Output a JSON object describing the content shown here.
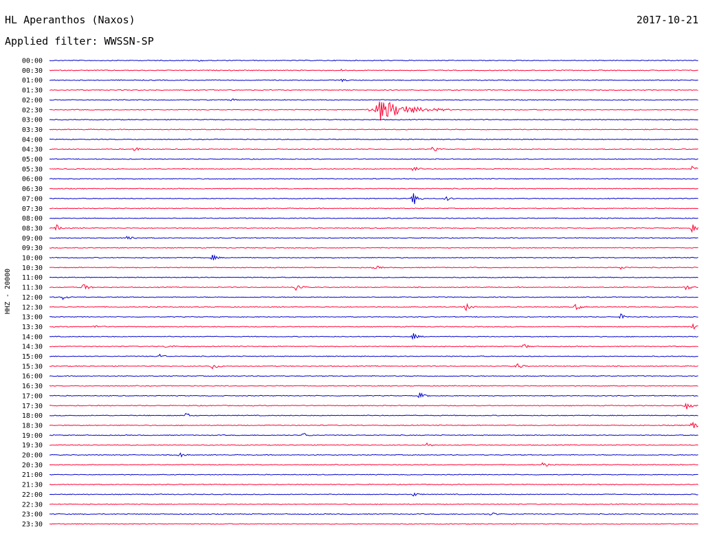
{
  "header": {
    "station": "HL Aperanthos (Naxos)",
    "date": "2017-10-21",
    "filter_prefix": "Applied filter:",
    "filter_value": "WWSSN-SP"
  },
  "colors": {
    "trace_a": "#0000cc",
    "trace_b": "#ff0033"
  },
  "chart_data": {
    "type": "line",
    "kind": "helicorder",
    "y_label": "HHZ - 20000",
    "row_labels": [
      "00:00",
      "00:30",
      "01:00",
      "01:30",
      "02:00",
      "02:30",
      "03:00",
      "03:30",
      "04:00",
      "04:30",
      "05:00",
      "05:30",
      "06:00",
      "06:30",
      "07:00",
      "07:30",
      "08:00",
      "08:30",
      "09:00",
      "09:30",
      "10:00",
      "10:30",
      "11:00",
      "11:30",
      "12:00",
      "12:30",
      "13:00",
      "13:30",
      "14:00",
      "14:30",
      "15:00",
      "15:30",
      "16:00",
      "16:30",
      "17:00",
      "17:30",
      "18:00",
      "18:30",
      "19:00",
      "19:30",
      "20:00",
      "20:30",
      "21:00",
      "21:30",
      "22:00",
      "22:30",
      "23:00",
      "23:30"
    ],
    "row_minutes": 30,
    "bursts": [
      {
        "row": "00:00",
        "t": 0.23,
        "amp": 1.0
      },
      {
        "row": "00:30",
        "t": 0.45,
        "amp": 1.5
      },
      {
        "row": "01:00",
        "t": 0.45,
        "amp": 2.0
      },
      {
        "row": "02:00",
        "t": 0.28,
        "amp": 2.0
      },
      {
        "row": "02:30",
        "t": 0.51,
        "amp": 16.0,
        "dur": 0.07
      },
      {
        "row": "04:30",
        "t": 0.13,
        "amp": 4.0
      },
      {
        "row": "04:30",
        "t": 0.59,
        "amp": 4.0
      },
      {
        "row": "05:30",
        "t": 0.56,
        "amp": 5.0
      },
      {
        "row": "05:30",
        "t": 0.99,
        "amp": 5.0
      },
      {
        "row": "07:00",
        "t": 0.56,
        "amp": 12.0
      },
      {
        "row": "07:00",
        "t": 0.61,
        "amp": 4.0
      },
      {
        "row": "08:30",
        "t": 0.01,
        "amp": 5.0
      },
      {
        "row": "08:30",
        "t": 0.99,
        "amp": 6.0
      },
      {
        "row": "09:00",
        "t": 0.12,
        "amp": 6.0
      },
      {
        "row": "10:00",
        "t": 0.25,
        "amp": 5.0
      },
      {
        "row": "10:30",
        "t": 0.5,
        "amp": 4.0
      },
      {
        "row": "10:30",
        "t": 0.88,
        "amp": 3.0
      },
      {
        "row": "11:30",
        "t": 0.05,
        "amp": 8.0
      },
      {
        "row": "11:30",
        "t": 0.38,
        "amp": 8.0
      },
      {
        "row": "11:30",
        "t": 0.98,
        "amp": 5.0
      },
      {
        "row": "12:00",
        "t": 0.02,
        "amp": 4.0
      },
      {
        "row": "12:30",
        "t": 0.64,
        "amp": 7.0
      },
      {
        "row": "12:30",
        "t": 0.81,
        "amp": 5.0
      },
      {
        "row": "13:00",
        "t": 0.88,
        "amp": 4.0
      },
      {
        "row": "13:30",
        "t": 0.07,
        "amp": 4.0
      },
      {
        "row": "13:30",
        "t": 0.99,
        "amp": 5.0
      },
      {
        "row": "14:00",
        "t": 0.56,
        "amp": 5.0
      },
      {
        "row": "14:30",
        "t": 0.18,
        "amp": 4.0
      },
      {
        "row": "14:30",
        "t": 0.73,
        "amp": 4.0
      },
      {
        "row": "15:00",
        "t": 0.17,
        "amp": 3.0
      },
      {
        "row": "15:30",
        "t": 0.25,
        "amp": 6.0
      },
      {
        "row": "15:30",
        "t": 0.72,
        "amp": 5.0
      },
      {
        "row": "17:00",
        "t": 0.57,
        "amp": 5.0
      },
      {
        "row": "17:30",
        "t": 0.98,
        "amp": 7.0
      },
      {
        "row": "18:00",
        "t": 0.21,
        "amp": 4.0
      },
      {
        "row": "18:30",
        "t": 0.99,
        "amp": 8.0
      },
      {
        "row": "19:00",
        "t": 0.39,
        "amp": 4.0
      },
      {
        "row": "19:30",
        "t": 0.58,
        "amp": 4.0
      },
      {
        "row": "20:00",
        "t": 0.2,
        "amp": 4.0
      },
      {
        "row": "20:30",
        "t": 0.76,
        "amp": 4.0
      },
      {
        "row": "22:00",
        "t": 0.56,
        "amp": 3.0
      },
      {
        "row": "23:00",
        "t": 0.68,
        "amp": 3.0
      }
    ]
  }
}
